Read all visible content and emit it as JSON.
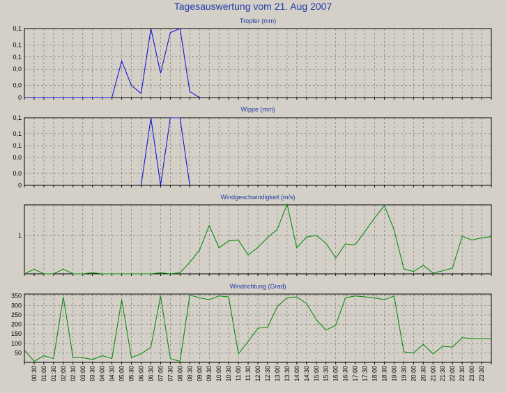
{
  "title": "Tagesauswertung vom 21. Aug 2007",
  "colors": {
    "background": "#d4d0c8",
    "title": "#1f3ca6",
    "blue_series": "#1616d6",
    "green_series": "#0a8c0a",
    "grid": "#7c7c7c"
  },
  "x_tick_labels": [
    "00:30",
    "01:00",
    "01:30",
    "02:00",
    "02:30",
    "03:00",
    "03:30",
    "04:00",
    "04:30",
    "05:00",
    "05:30",
    "06:00",
    "06:30",
    "07:00",
    "07:30",
    "08:00",
    "08:30",
    "09:00",
    "09:30",
    "10:00",
    "10:30",
    "11:00",
    "11:30",
    "12:00",
    "12:30",
    "13:00",
    "13:30",
    "14:00",
    "14:30",
    "15:00",
    "15:30",
    "16:00",
    "16:30",
    "17:00",
    "17:30",
    "18:00",
    "18:30",
    "19:00",
    "19:30",
    "20:00",
    "20:30",
    "21:00",
    "21:30",
    "22:00",
    "22:30",
    "23:00",
    "23:30"
  ],
  "chart_data": [
    {
      "type": "line",
      "title": "Tropfer (mm)",
      "ylim": [
        0,
        0.17
      ],
      "yticks": [
        0,
        0.03,
        0.07,
        0.1,
        0.13,
        0.17
      ],
      "ytick_labels": [
        "0",
        "0,0",
        "0,0",
        "0,1",
        "0,1",
        "0,1"
      ],
      "grid": true,
      "series": [
        {
          "color": "blue",
          "x": [
            "00:00",
            "00:30",
            "01:00",
            "01:30",
            "02:00",
            "02:30",
            "03:00",
            "03:30",
            "04:00",
            "04:30",
            "05:00",
            "05:30",
            "06:00",
            "06:30",
            "07:00",
            "07:30",
            "08:00",
            "08:30",
            "09:00"
          ],
          "values": [
            0,
            0,
            0,
            0,
            0,
            0,
            0,
            0,
            0,
            0,
            0.09,
            0.03,
            0.01,
            0.17,
            0.06,
            0.16,
            0.17,
            0.015,
            0
          ]
        }
      ]
    },
    {
      "type": "line",
      "title": "Wippe (mm)",
      "ylim": [
        0,
        0.17
      ],
      "yticks": [
        0,
        0.03,
        0.07,
        0.1,
        0.13,
        0.17
      ],
      "ytick_labels": [
        "0",
        "0,0",
        "0,0",
        "0,1",
        "0,1",
        "0,1"
      ],
      "grid": true,
      "series": [
        {
          "color": "blue",
          "x": [
            "06:00",
            "06:30",
            "07:00",
            "07:30",
            "08:00",
            "08:30"
          ],
          "values": [
            0,
            0.17,
            0,
            0.17,
            0.17,
            0
          ]
        }
      ]
    },
    {
      "type": "line",
      "title": "Windgeschwindigkeit (m/s)",
      "ylim": [
        0,
        1.8
      ],
      "yticks": [
        1
      ],
      "ytick_labels": [
        "1"
      ],
      "grid": true,
      "series": [
        {
          "color": "green",
          "x": [
            "00:00",
            "00:30",
            "01:00",
            "01:30",
            "02:00",
            "02:30",
            "03:00",
            "03:30",
            "04:00",
            "04:30",
            "05:00",
            "05:30",
            "06:00",
            "06:30",
            "07:00",
            "07:30",
            "08:00",
            "08:30",
            "09:00",
            "09:30",
            "10:00",
            "10:30",
            "11:00",
            "11:30",
            "12:00",
            "12:30",
            "13:00",
            "13:30",
            "14:00",
            "14:30",
            "15:00",
            "15:30",
            "16:00",
            "16:30",
            "17:00",
            "17:30",
            "18:00",
            "18:30",
            "19:00",
            "19:30",
            "20:00",
            "20:30",
            "21:00",
            "21:30",
            "22:00",
            "22:30",
            "23:00",
            "23:30",
            "24:00"
          ],
          "values": [
            0,
            0.12,
            0,
            0,
            0.12,
            0,
            0,
            0.03,
            0,
            0,
            0,
            0,
            0,
            0,
            0.03,
            0,
            0.03,
            0.3,
            0.62,
            1.26,
            0.68,
            0.86,
            0.88,
            0.49,
            0.69,
            0.95,
            1.16,
            1.82,
            0.68,
            0.96,
            1.0,
            0.8,
            0.41,
            0.78,
            0.76,
            1.1,
            1.46,
            1.78,
            1.15,
            0.13,
            0.06,
            0.22,
            0.02,
            0.08,
            0.15,
            0.98,
            0.88,
            0.94,
            0.97
          ]
        }
      ]
    },
    {
      "type": "line",
      "title": "Windrichtung (Grad)",
      "ylim": [
        0,
        360
      ],
      "yticks": [
        50,
        100,
        150,
        200,
        250,
        300,
        350
      ],
      "ytick_labels": [
        "50",
        "100",
        "150",
        "200",
        "250",
        "300",
        "350"
      ],
      "grid": true,
      "series": [
        {
          "color": "green",
          "x": [
            "00:00",
            "00:30",
            "01:00",
            "01:30",
            "02:00",
            "02:30",
            "03:00",
            "03:30",
            "04:00",
            "04:30",
            "05:00",
            "05:30",
            "06:00",
            "06:30",
            "07:00",
            "07:30",
            "08:00",
            "08:30",
            "09:00",
            "09:30",
            "10:00",
            "10:30",
            "11:00",
            "11:30",
            "12:00",
            "12:30",
            "13:00",
            "13:30",
            "14:00",
            "14:30",
            "15:00",
            "15:30",
            "16:00",
            "16:30",
            "17:00",
            "17:30",
            "18:00",
            "18:30",
            "19:00",
            "19:30",
            "20:00",
            "20:30",
            "21:00",
            "21:30",
            "22:00",
            "22:30",
            "23:00",
            "23:30",
            "24:00"
          ],
          "values": [
            65,
            5,
            35,
            20,
            345,
            25,
            25,
            15,
            35,
            20,
            330,
            25,
            45,
            80,
            350,
            20,
            5,
            355,
            340,
            330,
            350,
            345,
            45,
            110,
            180,
            185,
            295,
            340,
            345,
            310,
            225,
            170,
            195,
            340,
            350,
            345,
            340,
            330,
            350,
            55,
            50,
            95,
            45,
            85,
            80,
            130,
            125,
            125,
            125
          ]
        }
      ]
    }
  ]
}
